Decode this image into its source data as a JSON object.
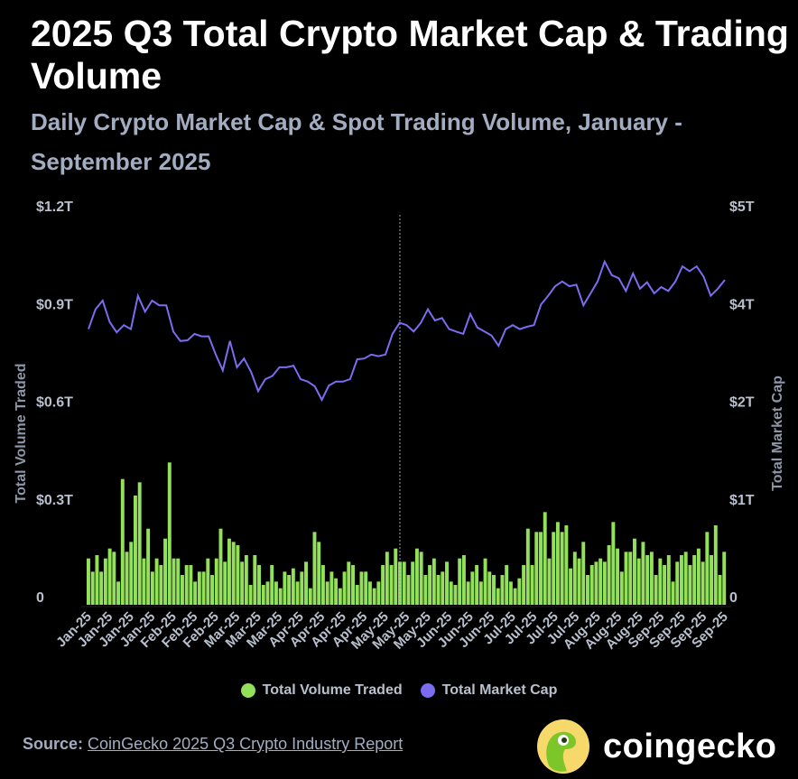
{
  "header": {
    "title": "2025 Q3 Total Crypto Market Cap & Trading Volume",
    "subtitle": "Daily Crypto Market Cap & Spot Trading Volume, January - September 2025"
  },
  "chart_data": {
    "type": "bar+line",
    "title": "2025 Q3 Total Crypto Market Cap & Trading Volume",
    "subtitle": "Daily Crypto Market Cap & Spot Trading Volume, January - September 2025",
    "y_left": {
      "label": "Total Volume Traded",
      "range_T": [
        0,
        1.2
      ],
      "ticks": [
        "0",
        "$0.3T",
        "$0.6T",
        "$0.9T",
        "$1.2T"
      ]
    },
    "y_right": {
      "label": "Total Market Cap",
      "range_T": [
        0,
        5
      ],
      "ticks": [
        "0",
        "$1T",
        "$2T",
        "$4T",
        "$5T"
      ]
    },
    "x_ticks": [
      "Jan-25",
      "Jan-25",
      "Jan-25",
      "Jan-25",
      "Feb-25",
      "Feb-25",
      "Feb-25",
      "Mar-25",
      "Mar-25",
      "Mar-25",
      "Apr-25",
      "Apr-25",
      "Apr-25",
      "Apr-25",
      "May-25",
      "May-25",
      "May-25",
      "Jun-25",
      "Jun-25",
      "Jun-25",
      "Jul-25",
      "Jul-25",
      "Jul-25",
      "Jul-25",
      "Aug-25",
      "Aug-25",
      "Aug-25",
      "Sep-25",
      "Sep-25",
      "Sep-25",
      "Sep-25"
    ],
    "x_range": [
      "2025-01-01",
      "2025-09-30"
    ],
    "grid": false,
    "legend_position": "bottom",
    "series": [
      {
        "name": "Total Volume Traded",
        "type": "bar",
        "axis": "left",
        "color": "#93e05a",
        "unit": "T USD",
        "values": [
          0.14,
          0.1,
          0.15,
          0.1,
          0.14,
          0.17,
          0.16,
          0.07,
          0.38,
          0.16,
          0.19,
          0.33,
          0.37,
          0.14,
          0.23,
          0.1,
          0.14,
          0.12,
          0.2,
          0.43,
          0.14,
          0.14,
          0.09,
          0.12,
          0.12,
          0.07,
          0.1,
          0.1,
          0.14,
          0.09,
          0.14,
          0.23,
          0.13,
          0.2,
          0.19,
          0.18,
          0.13,
          0.15,
          0.06,
          0.15,
          0.12,
          0.06,
          0.07,
          0.12,
          0.07,
          0.05,
          0.1,
          0.09,
          0.11,
          0.07,
          0.1,
          0.13,
          0.05,
          0.22,
          0.19,
          0.12,
          0.07,
          0.1,
          0.08,
          0.05,
          0.1,
          0.13,
          0.12,
          0.06,
          0.1,
          0.1,
          0.07,
          0.05,
          0.07,
          0.12,
          0.16,
          0.12,
          0.17,
          0.13,
          0.13,
          0.09,
          0.13,
          0.17,
          0.16,
          0.09,
          0.12,
          0.14,
          0.09,
          0.1,
          0.13,
          0.07,
          0.06,
          0.14,
          0.15,
          0.07,
          0.1,
          0.12,
          0.07,
          0.14,
          0.1,
          0.09,
          0.05,
          0.09,
          0.12,
          0.07,
          0.05,
          0.08,
          0.12,
          0.23,
          0.12,
          0.22,
          0.22,
          0.28,
          0.14,
          0.22,
          0.25,
          0.22,
          0.24,
          0.11,
          0.16,
          0.14,
          0.19,
          0.09,
          0.12,
          0.13,
          0.14,
          0.13,
          0.18,
          0.25,
          0.17,
          0.1,
          0.16,
          0.16,
          0.2,
          0.14,
          0.19,
          0.15,
          0.16,
          0.09,
          0.14,
          0.12,
          0.15,
          0.07,
          0.13,
          0.15,
          0.16,
          0.12,
          0.15,
          0.17,
          0.13,
          0.22,
          0.15,
          0.24,
          0.09,
          0.16
        ]
      },
      {
        "name": "Total Market Cap",
        "type": "line",
        "axis": "right",
        "color": "#7b6cf0",
        "unit": "T USD",
        "values": [
          3.47,
          3.72,
          3.83,
          3.56,
          3.43,
          3.52,
          3.47,
          3.89,
          3.69,
          3.83,
          3.77,
          3.77,
          3.44,
          3.32,
          3.33,
          3.41,
          3.38,
          3.38,
          3.15,
          2.95,
          3.32,
          2.99,
          3.1,
          2.93,
          2.69,
          2.84,
          2.88,
          2.99,
          2.99,
          3.01,
          2.84,
          2.81,
          2.75,
          2.58,
          2.76,
          2.81,
          2.81,
          2.84,
          3.09,
          3.1,
          3.15,
          3.13,
          3.15,
          3.41,
          3.55,
          3.52,
          3.44,
          3.55,
          3.72,
          3.58,
          3.61,
          3.47,
          3.44,
          3.41,
          3.66,
          3.49,
          3.44,
          3.39,
          3.26,
          3.47,
          3.52,
          3.47,
          3.5,
          3.52,
          3.78,
          3.89,
          4.01,
          4.07,
          4.01,
          4.03,
          3.77,
          3.92,
          4.07,
          4.32,
          4.15,
          4.11,
          3.95,
          4.17,
          3.98,
          4.06,
          3.92,
          4.0,
          3.95,
          4.07,
          4.26,
          4.2,
          4.26,
          4.13,
          3.89,
          3.98,
          4.09
        ]
      }
    ]
  },
  "legend": {
    "items": [
      {
        "label": "Total Volume Traded",
        "color": "#93e05a"
      },
      {
        "label": "Total Market Cap",
        "color": "#7b6cf0"
      }
    ]
  },
  "footer": {
    "source_label": "Source:",
    "source_link": "CoinGecko 2025 Q3 Crypto Industry Report",
    "brand": "coingecko"
  }
}
